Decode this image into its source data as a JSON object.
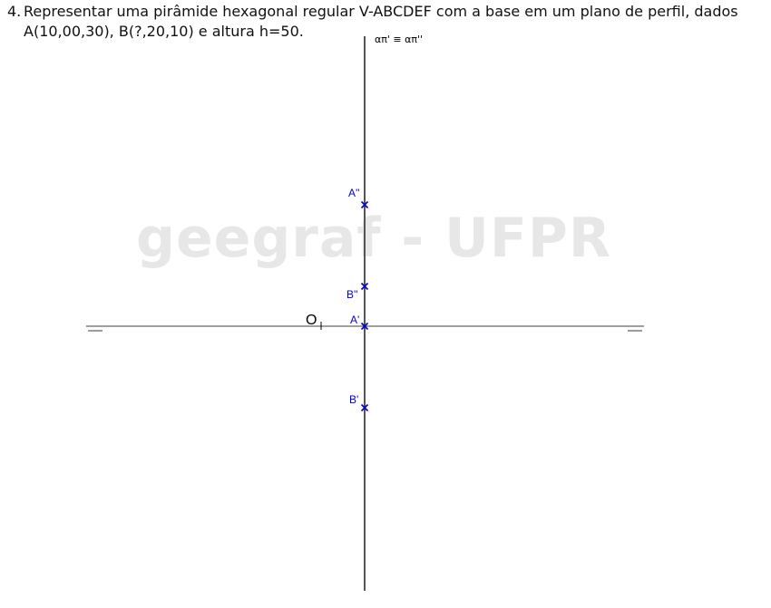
{
  "problem": {
    "number": "4.",
    "line1": "Representar uma pirâmide hexagonal regular V-ABCDEF com a base em um plano de perfil, dados",
    "line2": "A(10,00,30), B(?,20,10) e altura h=50."
  },
  "watermark": "geegraf - UFPR",
  "plane_label": "απ' ≡ απ''",
  "origin_label": "O",
  "points": [
    {
      "label": "A''",
      "name": "point-a-double-prime"
    },
    {
      "label": "B''",
      "name": "point-b-double-prime"
    },
    {
      "label": "A'",
      "name": "point-a-prime"
    },
    {
      "label": "B'",
      "name": "point-b-prime"
    }
  ],
  "colors": {
    "axis": "#555555",
    "points": "#0000cc",
    "watermark": "#e7e7e7",
    "text": "#111111"
  }
}
